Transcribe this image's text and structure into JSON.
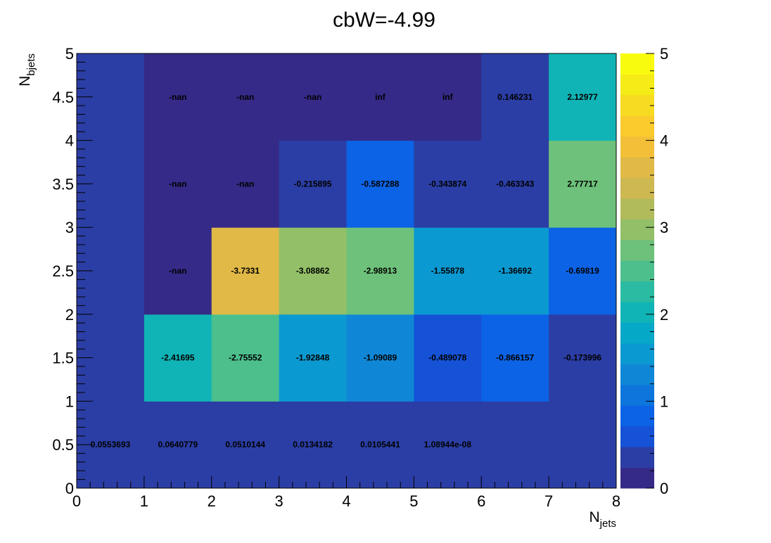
{
  "chart_data": {
    "type": "heatmap",
    "title": "cbW=-4.99",
    "x_label_main": "N",
    "x_label_sub": "jets",
    "y_label_main": "N",
    "y_label_sub": "bjets",
    "x_range": [
      0,
      8
    ],
    "y_range": [
      0,
      5
    ],
    "x_ticks": [
      "0",
      "1",
      "2",
      "3",
      "4",
      "5",
      "6",
      "7",
      "8"
    ],
    "y_ticks": [
      "0",
      "0.5",
      "1",
      "1.5",
      "2",
      "2.5",
      "3",
      "3.5",
      "4",
      "4.5",
      "5"
    ],
    "z_range": [
      0,
      5
    ],
    "z_ticks": [
      "0",
      "1",
      "2",
      "3",
      "4",
      "5"
    ],
    "palette": [
      "#352a87",
      "#2b3ea5",
      "#1552d6",
      "#0c63e5",
      "#0d75dc",
      "#1087d6",
      "#0b99d1",
      "#06a8c8",
      "#10b4b6",
      "#2bbba2",
      "#4cbf8d",
      "#6ec17a",
      "#92bf67",
      "#b1bb5b",
      "#cdb852",
      "#e0b947",
      "#f3bf39",
      "#fbcb2e",
      "#f7db22",
      "#f5eb17",
      "#f9fb0e"
    ],
    "cells": [
      {
        "x": 0.5,
        "y": 0.5,
        "z": 0.26,
        "label": "0.0553693"
      },
      {
        "x": 1.5,
        "y": 0.5,
        "z": 0.26,
        "label": "0.0640779"
      },
      {
        "x": 2.5,
        "y": 0.5,
        "z": 0.26,
        "label": "0.0510144"
      },
      {
        "x": 3.5,
        "y": 0.5,
        "z": 0.26,
        "label": "0.0134182"
      },
      {
        "x": 4.5,
        "y": 0.5,
        "z": 0.26,
        "label": "0.0105441"
      },
      {
        "x": 5.5,
        "y": 0.5,
        "z": 0.26,
        "label": "1.08944e-08"
      },
      {
        "x": 6.5,
        "y": 0.5,
        "z": 0.26,
        "label": ""
      },
      {
        "x": 7.5,
        "y": 0.5,
        "z": 0.26,
        "label": ""
      },
      {
        "x": 0.5,
        "y": 1.5,
        "z": 0.26,
        "label": ""
      },
      {
        "x": 1.5,
        "y": 1.5,
        "z": 2.0,
        "label": "-2.41695"
      },
      {
        "x": 2.5,
        "y": 1.5,
        "z": 2.5,
        "label": "-2.75552"
      },
      {
        "x": 3.5,
        "y": 1.5,
        "z": 1.65,
        "label": "-1.92848"
      },
      {
        "x": 4.5,
        "y": 1.5,
        "z": 1.2,
        "label": "-1.09089"
      },
      {
        "x": 5.5,
        "y": 1.5,
        "z": 0.65,
        "label": "-0.489078"
      },
      {
        "x": 6.5,
        "y": 1.5,
        "z": 0.9,
        "label": "-0.866157"
      },
      {
        "x": 7.5,
        "y": 1.5,
        "z": 0.26,
        "label": "-0.173996"
      },
      {
        "x": 0.5,
        "y": 2.5,
        "z": 0.26,
        "label": ""
      },
      {
        "x": 1.5,
        "y": 2.5,
        "z": 0.0,
        "label": "-nan"
      },
      {
        "x": 2.5,
        "y": 2.5,
        "z": 3.6,
        "label": "-3.7331"
      },
      {
        "x": 3.5,
        "y": 2.5,
        "z": 3.05,
        "label": "-3.08862"
      },
      {
        "x": 4.5,
        "y": 2.5,
        "z": 2.7,
        "label": "-2.98913"
      },
      {
        "x": 5.5,
        "y": 2.5,
        "z": 1.6,
        "label": "-1.55878"
      },
      {
        "x": 6.5,
        "y": 2.5,
        "z": 1.45,
        "label": "-1.36692"
      },
      {
        "x": 7.5,
        "y": 2.5,
        "z": 0.75,
        "label": "-0.69819"
      },
      {
        "x": 0.5,
        "y": 3.5,
        "z": 0.26,
        "label": ""
      },
      {
        "x": 1.5,
        "y": 3.5,
        "z": 0.0,
        "label": "-nan"
      },
      {
        "x": 2.5,
        "y": 3.5,
        "z": 0.0,
        "label": "-nan"
      },
      {
        "x": 3.5,
        "y": 3.5,
        "z": 0.26,
        "label": "-0.215895"
      },
      {
        "x": 4.5,
        "y": 3.5,
        "z": 0.75,
        "label": "-0.587288"
      },
      {
        "x": 5.5,
        "y": 3.5,
        "z": 0.45,
        "label": "-0.343874"
      },
      {
        "x": 6.5,
        "y": 3.5,
        "z": 0.45,
        "label": "-0.463343"
      },
      {
        "x": 7.5,
        "y": 3.5,
        "z": 2.7,
        "label": "2.77717"
      },
      {
        "x": 0.5,
        "y": 4.5,
        "z": 0.26,
        "label": ""
      },
      {
        "x": 1.5,
        "y": 4.5,
        "z": 0.0,
        "label": "-nan"
      },
      {
        "x": 2.5,
        "y": 4.5,
        "z": 0.0,
        "label": "-nan"
      },
      {
        "x": 3.5,
        "y": 4.5,
        "z": 0.0,
        "label": "-nan"
      },
      {
        "x": 4.5,
        "y": 4.5,
        "z": 0.0,
        "label": "inf"
      },
      {
        "x": 5.5,
        "y": 4.5,
        "z": 0.0,
        "label": "inf"
      },
      {
        "x": 6.5,
        "y": 4.5,
        "z": 0.26,
        "label": "0.146231"
      },
      {
        "x": 7.5,
        "y": 4.5,
        "z": 2.05,
        "label": "2.12977"
      }
    ]
  }
}
